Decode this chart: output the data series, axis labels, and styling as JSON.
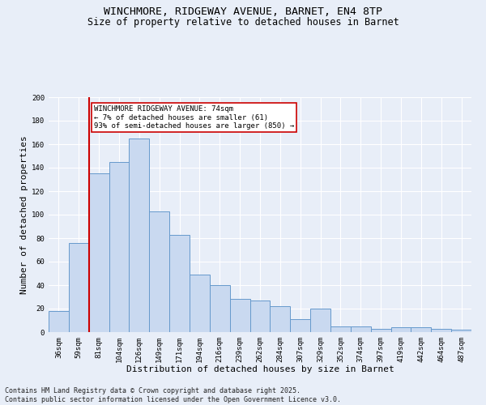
{
  "title_line1": "WINCHMORE, RIDGEWAY AVENUE, BARNET, EN4 8TP",
  "title_line2": "Size of property relative to detached houses in Barnet",
  "categories": [
    "36sqm",
    "59sqm",
    "81sqm",
    "104sqm",
    "126sqm",
    "149sqm",
    "171sqm",
    "194sqm",
    "216sqm",
    "239sqm",
    "262sqm",
    "284sqm",
    "307sqm",
    "329sqm",
    "352sqm",
    "374sqm",
    "397sqm",
    "419sqm",
    "442sqm",
    "464sqm",
    "487sqm"
  ],
  "values": [
    18,
    76,
    135,
    145,
    165,
    103,
    83,
    49,
    40,
    28,
    27,
    22,
    11,
    20,
    5,
    5,
    3,
    4,
    4,
    3,
    2
  ],
  "bar_color": "#c9d9f0",
  "bar_edge_color": "#6699cc",
  "bar_edge_width": 0.7,
  "vline_x_index": 1.5,
  "vline_color": "#cc0000",
  "annotation_line1": "WINCHMORE RIDGEWAY AVENUE: 74sqm",
  "annotation_line2": "← 7% of detached houses are smaller (61)",
  "annotation_line3": "93% of semi-detached houses are larger (850) →",
  "annotation_box_facecolor": "#ffffff",
  "annotation_box_edgecolor": "#cc0000",
  "xlabel": "Distribution of detached houses by size in Barnet",
  "ylabel": "Number of detached properties",
  "ylim_max": 200,
  "yticks": [
    0,
    20,
    40,
    60,
    80,
    100,
    120,
    140,
    160,
    180,
    200
  ],
  "footer_line1": "Contains HM Land Registry data © Crown copyright and database right 2025.",
  "footer_line2": "Contains public sector information licensed under the Open Government Licence v3.0.",
  "bg_color": "#e8eef8",
  "grid_color": "#ffffff",
  "title1_fontsize": 9.5,
  "title2_fontsize": 8.5,
  "ylabel_fontsize": 8,
  "xlabel_fontsize": 8,
  "tick_fontsize": 6.5,
  "annot_fontsize": 6.5,
  "footer_fontsize": 6
}
